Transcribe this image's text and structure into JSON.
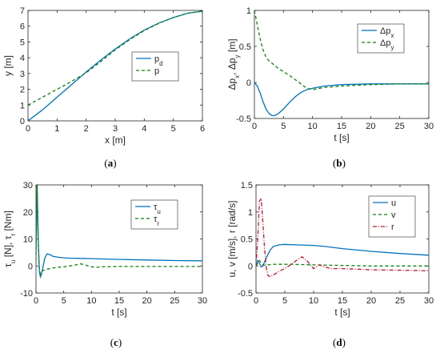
{
  "chart_data": [
    {
      "id": "a",
      "type": "line",
      "caption": "(a)",
      "xlabel": "x [m]",
      "ylabel": "y [m]",
      "xlim": [
        0,
        6
      ],
      "ylim": [
        0,
        7
      ],
      "xticks": [
        0,
        1,
        2,
        3,
        4,
        5,
        6
      ],
      "yticks": [
        0,
        1,
        2,
        3,
        4,
        5,
        6,
        7
      ],
      "legend_position": "center-right",
      "series": [
        {
          "name": "p",
          "sub": "d",
          "color": "#0072BD",
          "dash": "solid",
          "x": [
            0,
            0.5,
            1,
            1.5,
            2,
            2.5,
            3,
            3.5,
            4,
            4.5,
            5,
            5.5,
            6
          ],
          "y": [
            0,
            0.7,
            1.5,
            2.3,
            3.1,
            3.85,
            4.55,
            5.2,
            5.75,
            6.2,
            6.55,
            6.82,
            6.95
          ]
        },
        {
          "name": "p",
          "sub": "",
          "color": "#118011",
          "dash": "dashed",
          "x": [
            0,
            0.3,
            0.6,
            1,
            1.5,
            2,
            2.5,
            3,
            3.5,
            4,
            4.5,
            5,
            5.5,
            6
          ],
          "y": [
            1,
            1.3,
            1.6,
            2.0,
            2.5,
            3.05,
            3.75,
            4.5,
            5.15,
            5.72,
            6.18,
            6.55,
            6.82,
            6.95
          ]
        }
      ]
    },
    {
      "id": "b",
      "type": "line",
      "caption": "(b)",
      "xlabel": "t [s]",
      "ylabel": "Δp_x, Δp_y [m]",
      "xlim": [
        0,
        30
      ],
      "ylim": [
        -0.5,
        1
      ],
      "xticks": [
        0,
        5,
        10,
        15,
        20,
        25,
        30
      ],
      "yticks": [
        -0.5,
        0,
        0.5,
        1
      ],
      "legend_position": "top-right",
      "series": [
        {
          "name": "Δp",
          "sub": "x",
          "color": "#0072BD",
          "dash": "solid",
          "x": [
            0,
            0.5,
            1,
            1.5,
            2,
            2.5,
            3,
            3.5,
            4,
            5,
            6,
            7,
            8,
            9,
            10,
            12,
            15,
            20,
            25,
            30
          ],
          "y": [
            0,
            -0.05,
            -0.15,
            -0.27,
            -0.37,
            -0.43,
            -0.46,
            -0.46,
            -0.44,
            -0.37,
            -0.28,
            -0.2,
            -0.14,
            -0.1,
            -0.08,
            -0.05,
            -0.03,
            -0.02,
            -0.02,
            -0.02
          ]
        },
        {
          "name": "Δp",
          "sub": "y",
          "color": "#118011",
          "dash": "dashed",
          "x": [
            0,
            0.5,
            1,
            1.5,
            2,
            2.5,
            3,
            4,
            5,
            6,
            7,
            8,
            9,
            10,
            12,
            15,
            20,
            25,
            30
          ],
          "y": [
            1,
            0.8,
            0.6,
            0.45,
            0.35,
            0.3,
            0.27,
            0.2,
            0.15,
            0.1,
            0.04,
            -0.02,
            -0.08,
            -0.1,
            -0.07,
            -0.05,
            -0.03,
            -0.02,
            -0.02
          ]
        }
      ]
    },
    {
      "id": "c",
      "type": "line",
      "caption": "(c)",
      "xlabel": "t [s]",
      "ylabel": "τ_u [N], τ_r [Nm]",
      "xlim": [
        0,
        30
      ],
      "ylim": [
        -10,
        30
      ],
      "xticks": [
        0,
        5,
        10,
        15,
        20,
        25,
        30
      ],
      "yticks": [
        -10,
        0,
        10,
        20,
        30
      ],
      "legend_position": "top-right",
      "series": [
        {
          "name": "τ",
          "sub": "u",
          "color": "#0072BD",
          "dash": "solid",
          "x": [
            0,
            0.2,
            0.4,
            0.6,
            0.8,
            1.0,
            1.3,
            1.6,
            2.0,
            2.5,
            3,
            4,
            5,
            6,
            8,
            10,
            12,
            15,
            20,
            25,
            30
          ],
          "y": [
            5,
            30,
            10,
            -2,
            -4,
            -3,
            0,
            3,
            4.5,
            4.2,
            3.6,
            3.2,
            3.0,
            2.9,
            2.8,
            2.7,
            2.6,
            2.4,
            2.2,
            2.0,
            1.9
          ]
        },
        {
          "name": "τ",
          "sub": "r",
          "color": "#118011",
          "dash": "dashed",
          "x": [
            0,
            0.2,
            0.4,
            0.6,
            0.8,
            1.0,
            1.5,
            2,
            3,
            4,
            5,
            6,
            7,
            8,
            9,
            10,
            11,
            12,
            15,
            20,
            25,
            30
          ],
          "y": [
            2,
            30,
            8,
            -1,
            -3,
            -2,
            -1.5,
            -1.2,
            -0.8,
            -0.5,
            -0.3,
            0,
            0.3,
            0.8,
            0.3,
            -0.3,
            -0.5,
            -0.3,
            -0.2,
            -0.2,
            -0.2,
            -0.2
          ]
        }
      ]
    },
    {
      "id": "d",
      "type": "line",
      "caption": "(d)",
      "xlabel": "t [s]",
      "ylabel": "u, v [m/s], r [rad/s]",
      "xlim": [
        0,
        30
      ],
      "ylim": [
        -0.5,
        1.5
      ],
      "xticks": [
        0,
        5,
        10,
        15,
        20,
        25,
        30
      ],
      "yticks": [
        -0.5,
        0,
        0.5,
        1,
        1.5
      ],
      "legend_position": "top-right",
      "series": [
        {
          "name": "u",
          "sub": "",
          "color": "#0072BD",
          "dash": "solid",
          "x": [
            0,
            0.3,
            0.6,
            0.9,
            1.2,
            1.5,
            2,
            2.5,
            3,
            4,
            5,
            7,
            10,
            12,
            15,
            20,
            25,
            30
          ],
          "y": [
            0,
            0.1,
            0.05,
            -0.02,
            0,
            0.08,
            0.2,
            0.3,
            0.36,
            0.39,
            0.4,
            0.39,
            0.38,
            0.36,
            0.32,
            0.27,
            0.23,
            0.2
          ]
        },
        {
          "name": "v",
          "sub": "",
          "color": "#118011",
          "dash": "dashed",
          "x": [
            0,
            0.3,
            0.6,
            0.9,
            1.2,
            1.6,
            2,
            3,
            4,
            6,
            10,
            15,
            20,
            25,
            30
          ],
          "y": [
            0,
            0.05,
            0.1,
            0.06,
            0.02,
            0.01,
            0.02,
            0.03,
            0.03,
            0.03,
            0.02,
            0.01,
            0.0,
            0.0,
            0.0
          ]
        },
        {
          "name": "r",
          "sub": "",
          "color": "#C0152F",
          "dash": "dashdot",
          "x": [
            0,
            0.3,
            0.6,
            0.9,
            1.2,
            1.5,
            1.8,
            2.1,
            2.5,
            3,
            4,
            5,
            6,
            7,
            8,
            9,
            10,
            11,
            12,
            13,
            15,
            20,
            25,
            30
          ],
          "y": [
            0,
            0.5,
            1.2,
            1.25,
            0.8,
            0.3,
            -0.05,
            -0.18,
            -0.2,
            -0.17,
            -0.1,
            -0.05,
            0.02,
            0.1,
            0.17,
            0.08,
            -0.05,
            0.02,
            -0.02,
            -0.05,
            -0.05,
            -0.07,
            -0.08,
            -0.09
          ]
        }
      ]
    }
  ]
}
